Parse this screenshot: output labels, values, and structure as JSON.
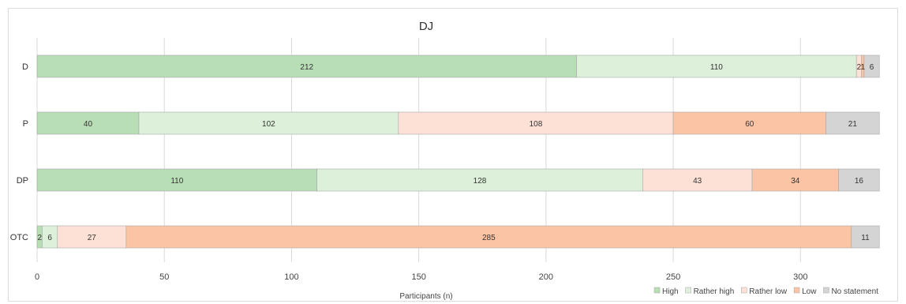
{
  "chart_data": {
    "type": "bar",
    "orientation": "horizontal",
    "stacked": true,
    "title": "DJ",
    "xlabel": "Participants (n)",
    "ylabel": "",
    "xlim": [
      0,
      330
    ],
    "xticks": [
      0,
      50,
      100,
      150,
      200,
      250,
      300
    ],
    "grid": "vertical",
    "legend_position": "bottom-right",
    "categories": [
      "D",
      "P",
      "DP",
      "OTC"
    ],
    "series": [
      {
        "name": "High",
        "color": "#b7deb4",
        "values": [
          212,
          40,
          110,
          2
        ]
      },
      {
        "name": "Rather high",
        "color": "#dcf0da",
        "values": [
          110,
          102,
          128,
          6
        ]
      },
      {
        "name": "Rather low",
        "color": "#fde0d6",
        "values": [
          2,
          108,
          43,
          27
        ]
      },
      {
        "name": "Low",
        "color": "#fbc4a4",
        "values": [
          1,
          60,
          34,
          285
        ]
      },
      {
        "name": "No statement",
        "color": "#d4d4d4",
        "values": [
          6,
          21,
          16,
          11
        ]
      }
    ]
  }
}
